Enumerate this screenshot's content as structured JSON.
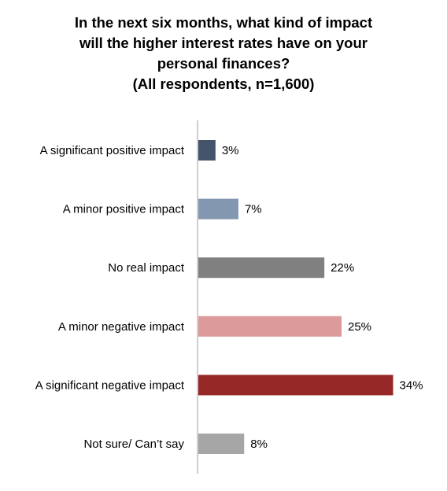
{
  "chart_data": {
    "type": "bar",
    "orientation": "horizontal",
    "title": [
      "In the next six months, what kind of impact",
      "will the higher interest rates have on your",
      "personal finances?",
      "(All respondents, n=1,600)"
    ],
    "categories": [
      "A significant positive impact",
      "A minor positive impact",
      "No real impact",
      "A minor negative impact",
      "A significant negative impact",
      "Not sure/ Can’t say"
    ],
    "values": [
      3,
      7,
      22,
      25,
      34,
      8
    ],
    "value_labels": [
      "3%",
      "7%",
      "22%",
      "25%",
      "34%",
      "8%"
    ],
    "colors": [
      "#44546a",
      "#8497b0",
      "#808080",
      "#dd9a9a",
      "#962828",
      "#a6a6a6"
    ],
    "axis_color": "#bfbfbf",
    "xlim": [
      0,
      100
    ],
    "grid": false,
    "legend": "none"
  }
}
